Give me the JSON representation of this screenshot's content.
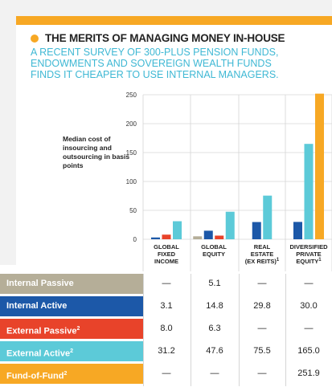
{
  "header": {
    "title": "THE MERITS OF MANAGING MONEY IN-HOUSE",
    "subtitle": "A RECENT SURVEY OF 300-PLUS PENSION FUNDS, ENDOWMENTS AND SOVEREIGN WEALTH FUNDS FINDS IT CHEAPER TO USE INTERNAL MANAGERS."
  },
  "chart_data": {
    "type": "bar",
    "title": "THE MERITS OF MANAGING MONEY IN-HOUSE",
    "ylabel": "Median cost of insourcing and outsourcing in basis points",
    "ylim": [
      0,
      250
    ],
    "yticks": [
      0,
      50,
      100,
      150,
      200,
      250
    ],
    "categories": [
      {
        "lines": [
          "GLOBAL",
          "FIXED",
          "INCOME"
        ]
      },
      {
        "lines": [
          "GLOBAL",
          "EQUITY"
        ]
      },
      {
        "lines": [
          "REAL",
          "ESTATE",
          "(EX REITS)"
        ],
        "sup": "1"
      },
      {
        "lines": [
          "DIVERSIFIED",
          "PRIVATE",
          "EQUITY"
        ],
        "sup": "1"
      }
    ],
    "series": [
      {
        "name": "Internal Passive",
        "color": "#b5ae98",
        "values": [
          null,
          5.1,
          null,
          null
        ],
        "display": [
          "—",
          "5.1",
          "—",
          "—"
        ]
      },
      {
        "name": "Internal Active",
        "color": "#1c58a8",
        "values": [
          3.1,
          14.8,
          29.8,
          30.0
        ],
        "display": [
          "3.1",
          "14.8",
          "29.8",
          "30.0"
        ]
      },
      {
        "name": "External Passive",
        "sup": "2",
        "color": "#e8432a",
        "values": [
          8.0,
          6.3,
          null,
          null
        ],
        "display": [
          "8.0",
          "6.3",
          "—",
          "—"
        ]
      },
      {
        "name": "External Active",
        "sup": "2",
        "color": "#5ccad8",
        "values": [
          31.2,
          47.6,
          75.5,
          165.0
        ],
        "display": [
          "31.2",
          "47.6",
          "75.5",
          "165.0"
        ]
      },
      {
        "name": "Fund-of-Fund",
        "sup": "2",
        "color": "#f7a824",
        "values": [
          null,
          null,
          null,
          251.9
        ],
        "display": [
          "—",
          "—",
          "—",
          "251.9"
        ]
      }
    ],
    "grid": true,
    "legend": "table-below"
  }
}
